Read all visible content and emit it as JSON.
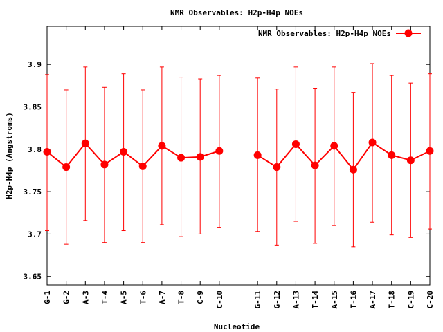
{
  "chart_data": {
    "type": "line",
    "title": "NMR Observables: H2p-H4p NOEs",
    "xlabel": "Nucleotide",
    "ylabel": "H2p-H4p (Angstroms)",
    "ylim": [
      3.64,
      3.945
    ],
    "yticks": [
      3.65,
      3.7,
      3.75,
      3.8,
      3.85,
      3.9
    ],
    "grid": false,
    "legend_position": "top-right",
    "color": "#ff0000",
    "series": [
      {
        "name": "NMR Observables: H2p-H4p NOEs",
        "segments": [
          {
            "categories": [
              "G-1",
              "G-2",
              "A-3",
              "T-4",
              "A-5",
              "T-6",
              "A-7",
              "T-8",
              "C-9",
              "C-10"
            ],
            "values": [
              3.797,
              3.779,
              3.807,
              3.782,
              3.797,
              3.78,
              3.804,
              3.79,
              3.791,
              3.798
            ],
            "err_low": [
              3.704,
              3.688,
              3.716,
              3.69,
              3.704,
              3.69,
              3.711,
              3.697,
              3.7,
              3.708
            ],
            "err_high": [
              3.888,
              3.87,
              3.897,
              3.873,
              3.889,
              3.87,
              3.897,
              3.885,
              3.883,
              3.887
            ]
          },
          {
            "categories": [
              "G-11",
              "G-12",
              "A-13",
              "T-14",
              "A-15",
              "T-16",
              "A-17",
              "T-18",
              "C-19",
              "C-20"
            ],
            "values": [
              3.793,
              3.779,
              3.806,
              3.781,
              3.804,
              3.776,
              3.808,
              3.793,
              3.787,
              3.798
            ],
            "err_low": [
              3.703,
              3.687,
              3.715,
              3.689,
              3.71,
              3.685,
              3.714,
              3.699,
              3.696,
              3.706
            ],
            "err_high": [
              3.884,
              3.871,
              3.897,
              3.872,
              3.897,
              3.867,
              3.901,
              3.887,
              3.878,
              3.889
            ]
          }
        ]
      }
    ]
  }
}
